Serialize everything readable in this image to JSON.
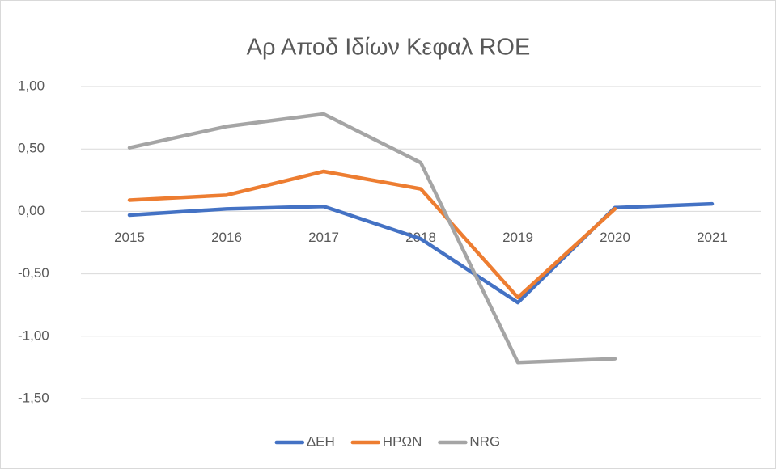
{
  "chart_data": {
    "type": "line",
    "title": "Αρ Αποδ Ιδίων Κεφαλ ROE",
    "categories": [
      "2015",
      "2016",
      "2017",
      "2018",
      "2019",
      "2020",
      "2021"
    ],
    "series": [
      {
        "name": "ΔΕΗ",
        "color": "#4472c4",
        "values": [
          -0.03,
          0.02,
          0.04,
          -0.22,
          -0.73,
          0.03,
          0.06
        ]
      },
      {
        "name": "ΗΡΩΝ",
        "color": "#ed7d31",
        "values": [
          0.09,
          0.13,
          0.32,
          0.18,
          -0.69,
          0.02,
          null
        ]
      },
      {
        "name": "NRG",
        "color": "#a5a5a5",
        "values": [
          0.51,
          0.68,
          0.78,
          0.39,
          -1.21,
          -1.18,
          null
        ]
      }
    ],
    "ylim": [
      -1.5,
      1.0
    ],
    "yticks": [
      {
        "value": -1.5,
        "label": "-1,50"
      },
      {
        "value": -1.0,
        "label": "-1,00"
      },
      {
        "value": -0.5,
        "label": "-0,50"
      },
      {
        "value": 0,
        "label": "0,00"
      },
      {
        "value": 0.5,
        "label": "0,50"
      },
      {
        "value": 1.0,
        "label": "1,00"
      }
    ],
    "grid": true,
    "legend": "bottom"
  }
}
